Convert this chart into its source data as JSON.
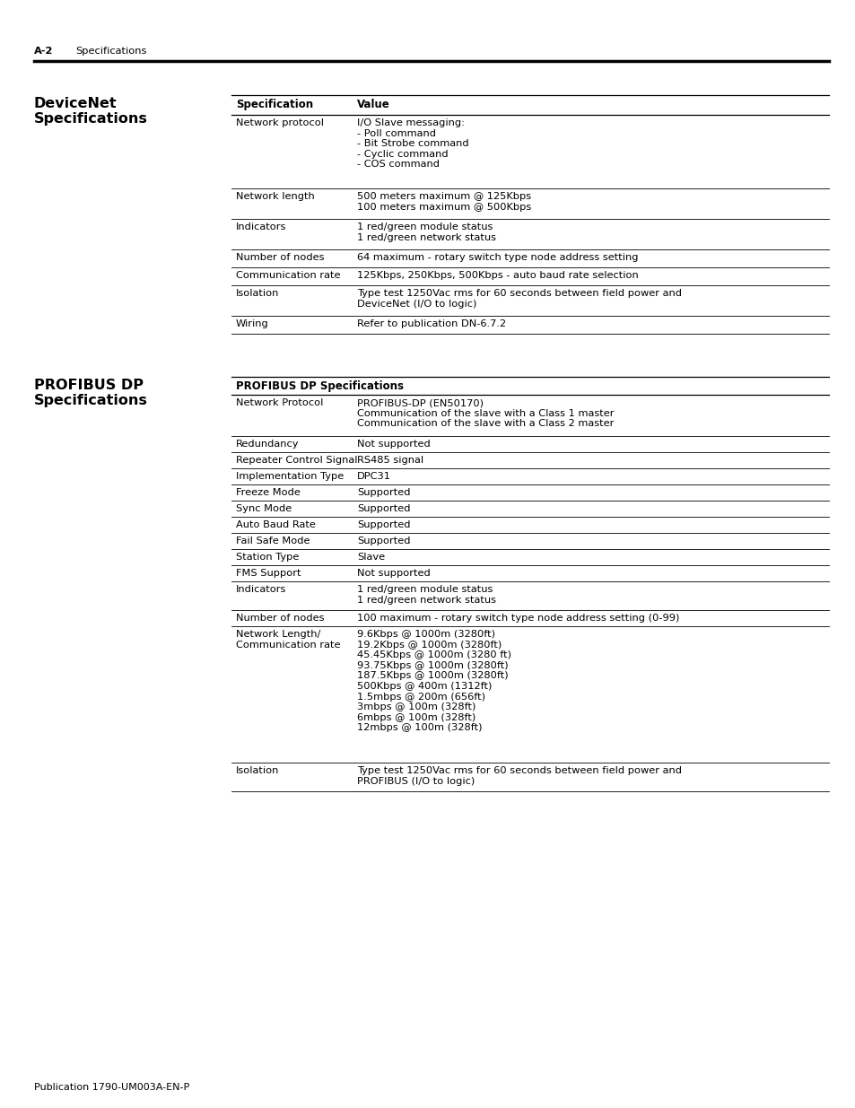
{
  "page_header_bold": "A-2",
  "page_header_text": "Specifications",
  "section1_title_line1": "DeviceNet",
  "section1_title_line2": "Specifications",
  "section1_table_header": [
    "Specification",
    "Value"
  ],
  "section1_rows": [
    [
      "Network protocol",
      "I/O Slave messaging:\n- Poll command\n- Bit Strobe command\n- Cyclic command\n- COS command"
    ],
    [
      "Network length",
      "500 meters maximum @ 125Kbps\n100 meters maximum @ 500Kbps"
    ],
    [
      "Indicators",
      "1 red/green module status\n1 red/green network status"
    ],
    [
      "Number of nodes",
      "64 maximum - rotary switch type node address setting"
    ],
    [
      "Communication rate",
      "125Kbps, 250Kbps, 500Kbps - auto baud rate selection"
    ],
    [
      "Isolation",
      "Type test 1250Vac rms for 60 seconds between field power and\nDeviceNet (I/O to logic)"
    ],
    [
      "Wiring",
      "Refer to publication DN-6.7.2"
    ]
  ],
  "section2_title_line1": "PROFIBUS DP",
  "section2_title_line2": "Specifications",
  "section2_table_header": "PROFIBUS DP Specifications",
  "section2_rows": [
    [
      "Network Protocol",
      "PROFIBUS-DP (EN50170)\nCommunication of the slave with a Class 1 master\nCommunication of the slave with a Class 2 master"
    ],
    [
      "Redundancy",
      "Not supported"
    ],
    [
      "Repeater Control Signal",
      "RS485 signal"
    ],
    [
      "Implementation Type",
      "DPC31"
    ],
    [
      "Freeze Mode",
      "Supported"
    ],
    [
      "Sync Mode",
      "Supported"
    ],
    [
      "Auto Baud Rate",
      "Supported"
    ],
    [
      "Fail Safe Mode",
      "Supported"
    ],
    [
      "Station Type",
      "Slave"
    ],
    [
      "FMS Support",
      "Not supported"
    ],
    [
      "Indicators",
      "1 red/green module status\n1 red/green network status"
    ],
    [
      "Number of nodes",
      "100 maximum - rotary switch type node address setting (0-99)"
    ],
    [
      "Network Length/\nCommunication rate",
      "9.6Kbps @ 1000m (3280ft)\n19.2Kbps @ 1000m (3280ft)\n45.45Kbps @ 1000m (3280 ft)\n93.75Kbps @ 1000m (3280ft)\n187.5Kbps @ 1000m (3280ft)\n500Kbps @ 400m (1312ft)\n1.5mbps @ 200m (656ft)\n3mbps @ 100m (328ft)\n6mbps @ 100m (328ft)\n12mbps @ 100m (328ft)"
    ],
    [
      "Isolation",
      "Type test 1250Vac rms for 60 seconds between field power and\nPROFIBUS (I/O to logic)"
    ]
  ],
  "footer_text": "Publication 1790-UM003A-EN-P",
  "bg_color": "#ffffff"
}
